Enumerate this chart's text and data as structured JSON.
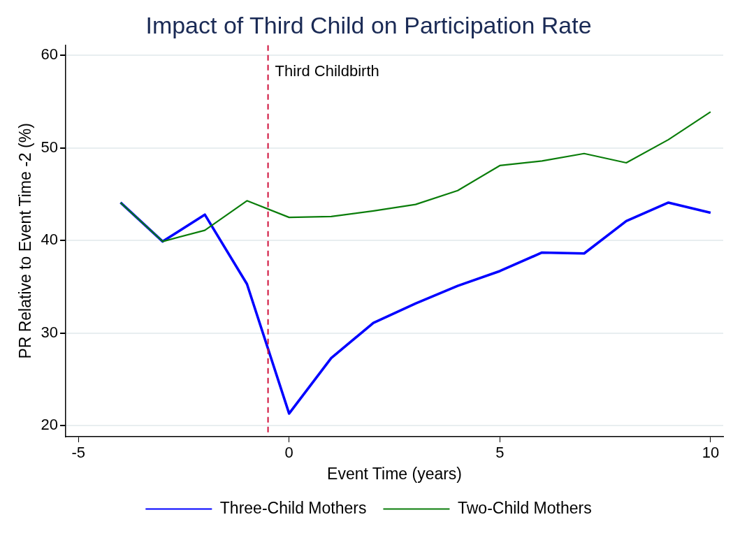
{
  "chart_data": {
    "type": "line",
    "title": "Impact of Third Child on Participation Rate",
    "xlabel": "Event Time (years)",
    "ylabel": "PR Relative to Event Time -2 (%)",
    "x": [
      -4,
      -3,
      -2,
      -1,
      0,
      1,
      2,
      3,
      4,
      5,
      6,
      7,
      8,
      9,
      10
    ],
    "series": [
      {
        "name": "Three-Child Mothers",
        "color": "#0000ff",
        "values": [
          44.1,
          39.9,
          42.8,
          35.3,
          21.3,
          27.3,
          31.1,
          33.2,
          35.1,
          36.7,
          38.7,
          38.6,
          42.1,
          44.1,
          43.0
        ]
      },
      {
        "name": "Two-Child Mothers",
        "color": "#0a7d0a",
        "values": [
          44.1,
          39.9,
          41.1,
          44.3,
          42.5,
          42.6,
          43.2,
          43.9,
          45.4,
          48.1,
          48.6,
          49.4,
          48.4,
          50.9,
          53.9
        ]
      }
    ],
    "xlim": [
      -5.3,
      10.3
    ],
    "xticks": [
      -5,
      0,
      5,
      10
    ],
    "ylim": [
      18.8,
      61.1
    ],
    "yticks": [
      20,
      30,
      40,
      50,
      60
    ],
    "ref_lines": [
      {
        "axis": "x",
        "value": -0.5,
        "label": "Third Childbirth",
        "color": "#d0103a",
        "line_style": "dashed"
      }
    ],
    "grid": "y",
    "legend": "bottom",
    "marker": "none",
    "line_style": "solid"
  }
}
